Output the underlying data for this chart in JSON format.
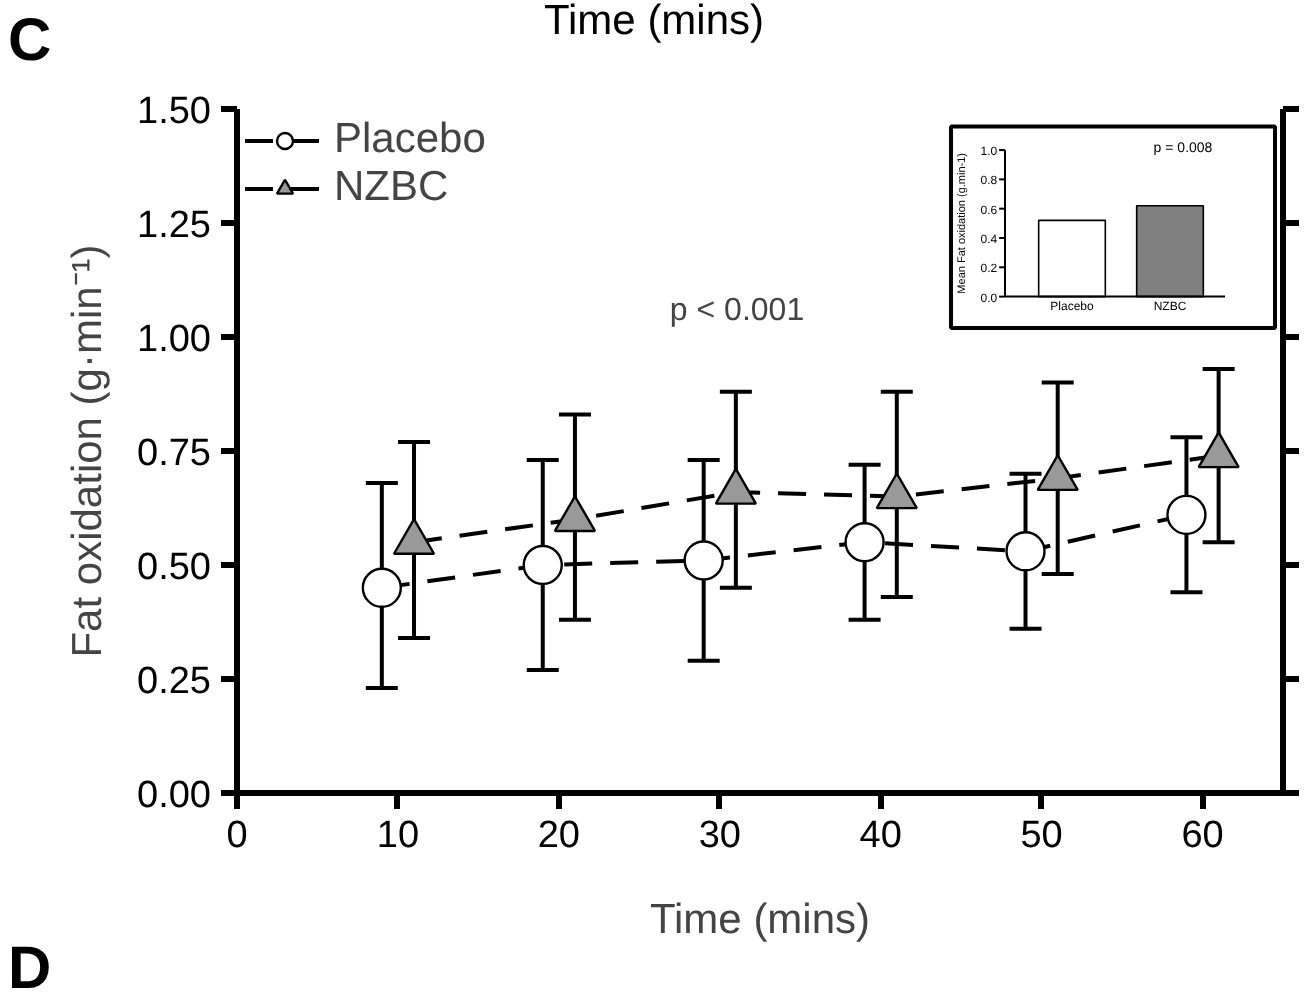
{
  "chart_data": [
    {
      "type": "line",
      "xlabel": "Time (mins)",
      "ylabel": "Fat oxidation (g·min⁻¹)",
      "xlim": [
        0,
        65
      ],
      "xticks": [
        0,
        10,
        20,
        30,
        40,
        50,
        60
      ],
      "ylim": [
        0,
        1.5
      ],
      "yticks": [
        {
          "value": 0,
          "label": "0.00"
        },
        {
          "value": 0.25,
          "label": "0.25"
        },
        {
          "value": 0.5,
          "label": "0.50"
        },
        {
          "value": 0.75,
          "label": "0.75"
        },
        {
          "value": 1.0,
          "label": "1.00"
        },
        {
          "value": 1.25,
          "label": "1.25"
        },
        {
          "value": 1.5,
          "label": "1.50"
        }
      ],
      "series": [
        {
          "name": "Placebo",
          "color": "#ffffff",
          "marker": "circle",
          "x": [
            9,
            19,
            29,
            39,
            49,
            59
          ],
          "values": [
            0.45,
            0.5,
            0.51,
            0.55,
            0.53,
            0.61
          ],
          "errors": [
            [
              0.23,
              0.68
            ],
            [
              0.27,
              0.73
            ],
            [
              0.29,
              0.73
            ],
            [
              0.38,
              0.72
            ],
            [
              0.36,
              0.7
            ],
            [
              0.44,
              0.78
            ]
          ]
        },
        {
          "name": "NZBC",
          "color": "#999999",
          "marker": "triangle",
          "x": [
            11,
            21,
            31,
            41,
            51,
            61
          ],
          "values": [
            0.55,
            0.6,
            0.66,
            0.65,
            0.69,
            0.74
          ],
          "errors": [
            [
              0.34,
              0.77
            ],
            [
              0.38,
              0.83
            ],
            [
              0.45,
              0.88
            ],
            [
              0.43,
              0.88
            ],
            [
              0.48,
              0.9
            ],
            [
              0.55,
              0.93
            ]
          ]
        }
      ],
      "line_style": "dashed",
      "legend": "top left",
      "grid": false,
      "annotations": [
        "C",
        "Time (mins)",
        "D",
        "p < 0.001"
      ]
    },
    {
      "type": "bar",
      "categories": [
        "Placebo",
        "NZBC"
      ],
      "values": [
        0.52,
        0.62
      ],
      "colors": [
        "#ffffff",
        "#808080"
      ],
      "ylabel": "Mean Fat oxidation (g.min-1)",
      "ylim": [
        0,
        1.0
      ],
      "yticks": [
        {
          "value": 0,
          "label": "0.0"
        },
        {
          "value": 0.2,
          "label": "0.2"
        },
        {
          "value": 0.4,
          "label": "0.4"
        },
        {
          "value": 0.6,
          "label": "0.6"
        },
        {
          "value": 0.8,
          "label": "0.8"
        },
        {
          "value": 1.0,
          "label": "1.0"
        }
      ],
      "annotations": [
        "p = 0.008"
      ]
    }
  ]
}
